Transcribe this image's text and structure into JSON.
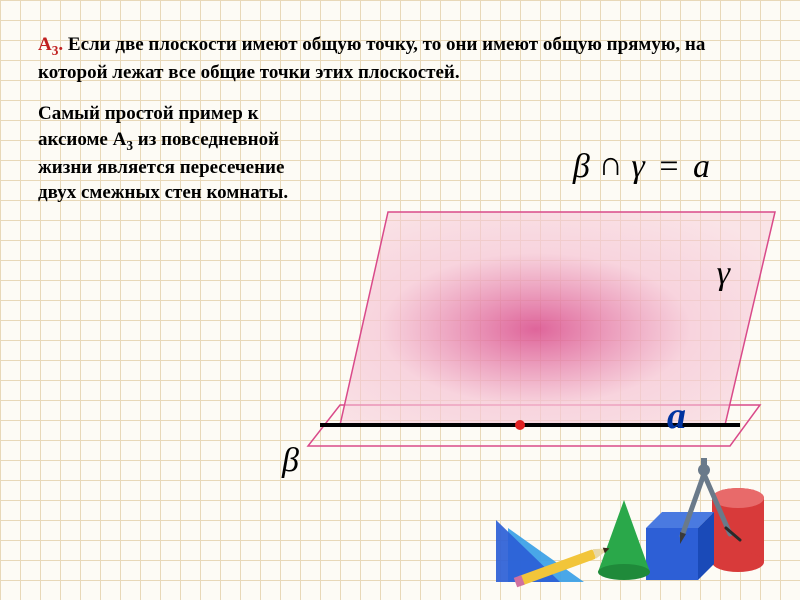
{
  "theorem": {
    "label_html": "А<sub>3</sub>.",
    "text": "Если две плоскости имеют общую точку, то они имеют общую прямую, на которой лежат все общие точки этих плоскостей.",
    "label_color": "#c02020"
  },
  "example": {
    "text_html": "Самый простой пример к аксиоме А<sub>3</sub> из повседневной жизни является пересечение двух смежных стен комнаты."
  },
  "formula": {
    "beta": "β",
    "op": "∩",
    "gamma": "γ",
    "eq": "=",
    "a": "a"
  },
  "labels": {
    "gamma": "γ",
    "beta": "β",
    "a": "a"
  },
  "diagram": {
    "plane_gamma_fill1": "#f6c7d6",
    "plane_gamma_fill2": "#d94a8a",
    "plane_gamma_stroke": "#d94a8a",
    "plane_beta_stroke": "#d94a8a",
    "line_a_color": "#000000",
    "line_a_width": 4,
    "point_fill": "#e02020",
    "point_r": 5
  },
  "decor": {
    "cylinder": "#d83a3a",
    "cube": "#2d5fd6",
    "cone": "#2aa84a",
    "triangle1": "#2d5fd6",
    "triangle2": "#3aa0e6",
    "pencil_body": "#f2c53a",
    "pencil_tip": "#3a2a1a",
    "compass": "#6a7a8a"
  }
}
